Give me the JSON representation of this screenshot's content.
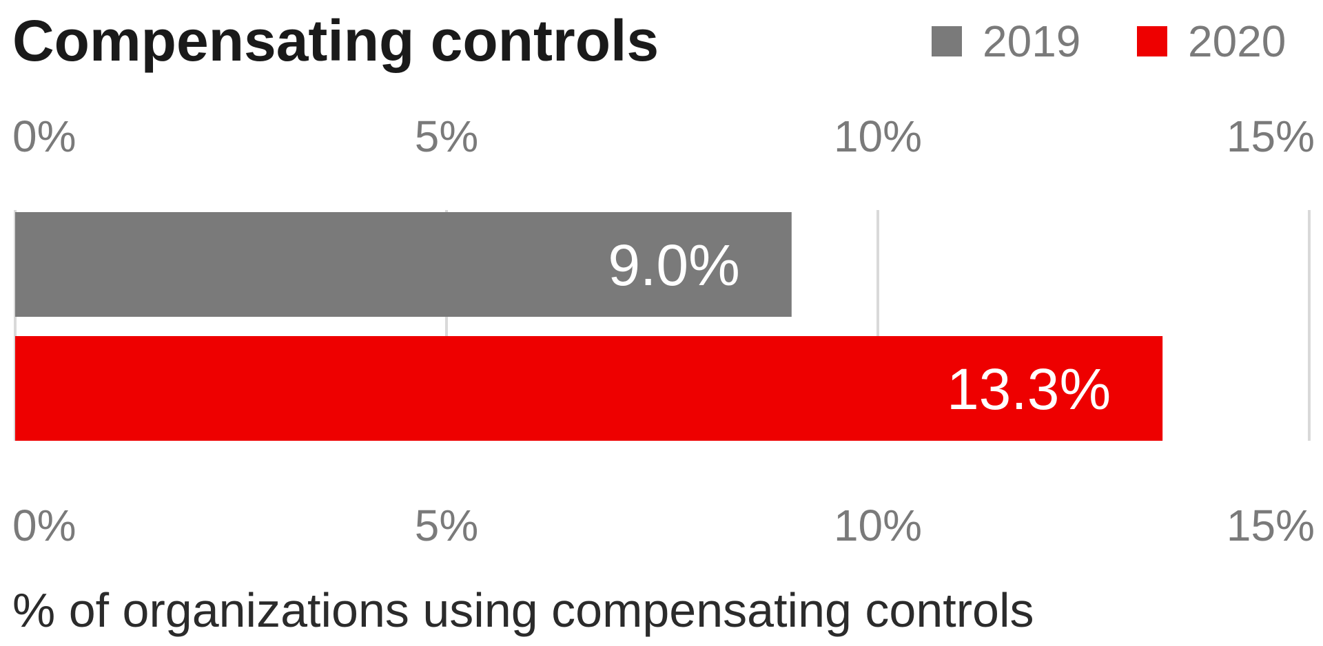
{
  "chart_data": {
    "type": "bar",
    "orientation": "horizontal",
    "title": "Compensating controls",
    "xlabel": "% of organizations using compensating controls",
    "ylabel": "",
    "xlim": [
      0,
      15
    ],
    "ticks": [
      {
        "value": 0,
        "label": "0%"
      },
      {
        "value": 5,
        "label": "5%"
      },
      {
        "value": 10,
        "label": "10%"
      },
      {
        "value": 15,
        "label": "15%"
      }
    ],
    "grid": true,
    "legend_position": "top-right",
    "series": [
      {
        "name": "2019",
        "value": 9.0,
        "label": "9.0%",
        "color": "#7a7a7a"
      },
      {
        "name": "2020",
        "value": 13.3,
        "label": "13.3%",
        "color": "#ee0000"
      }
    ]
  }
}
